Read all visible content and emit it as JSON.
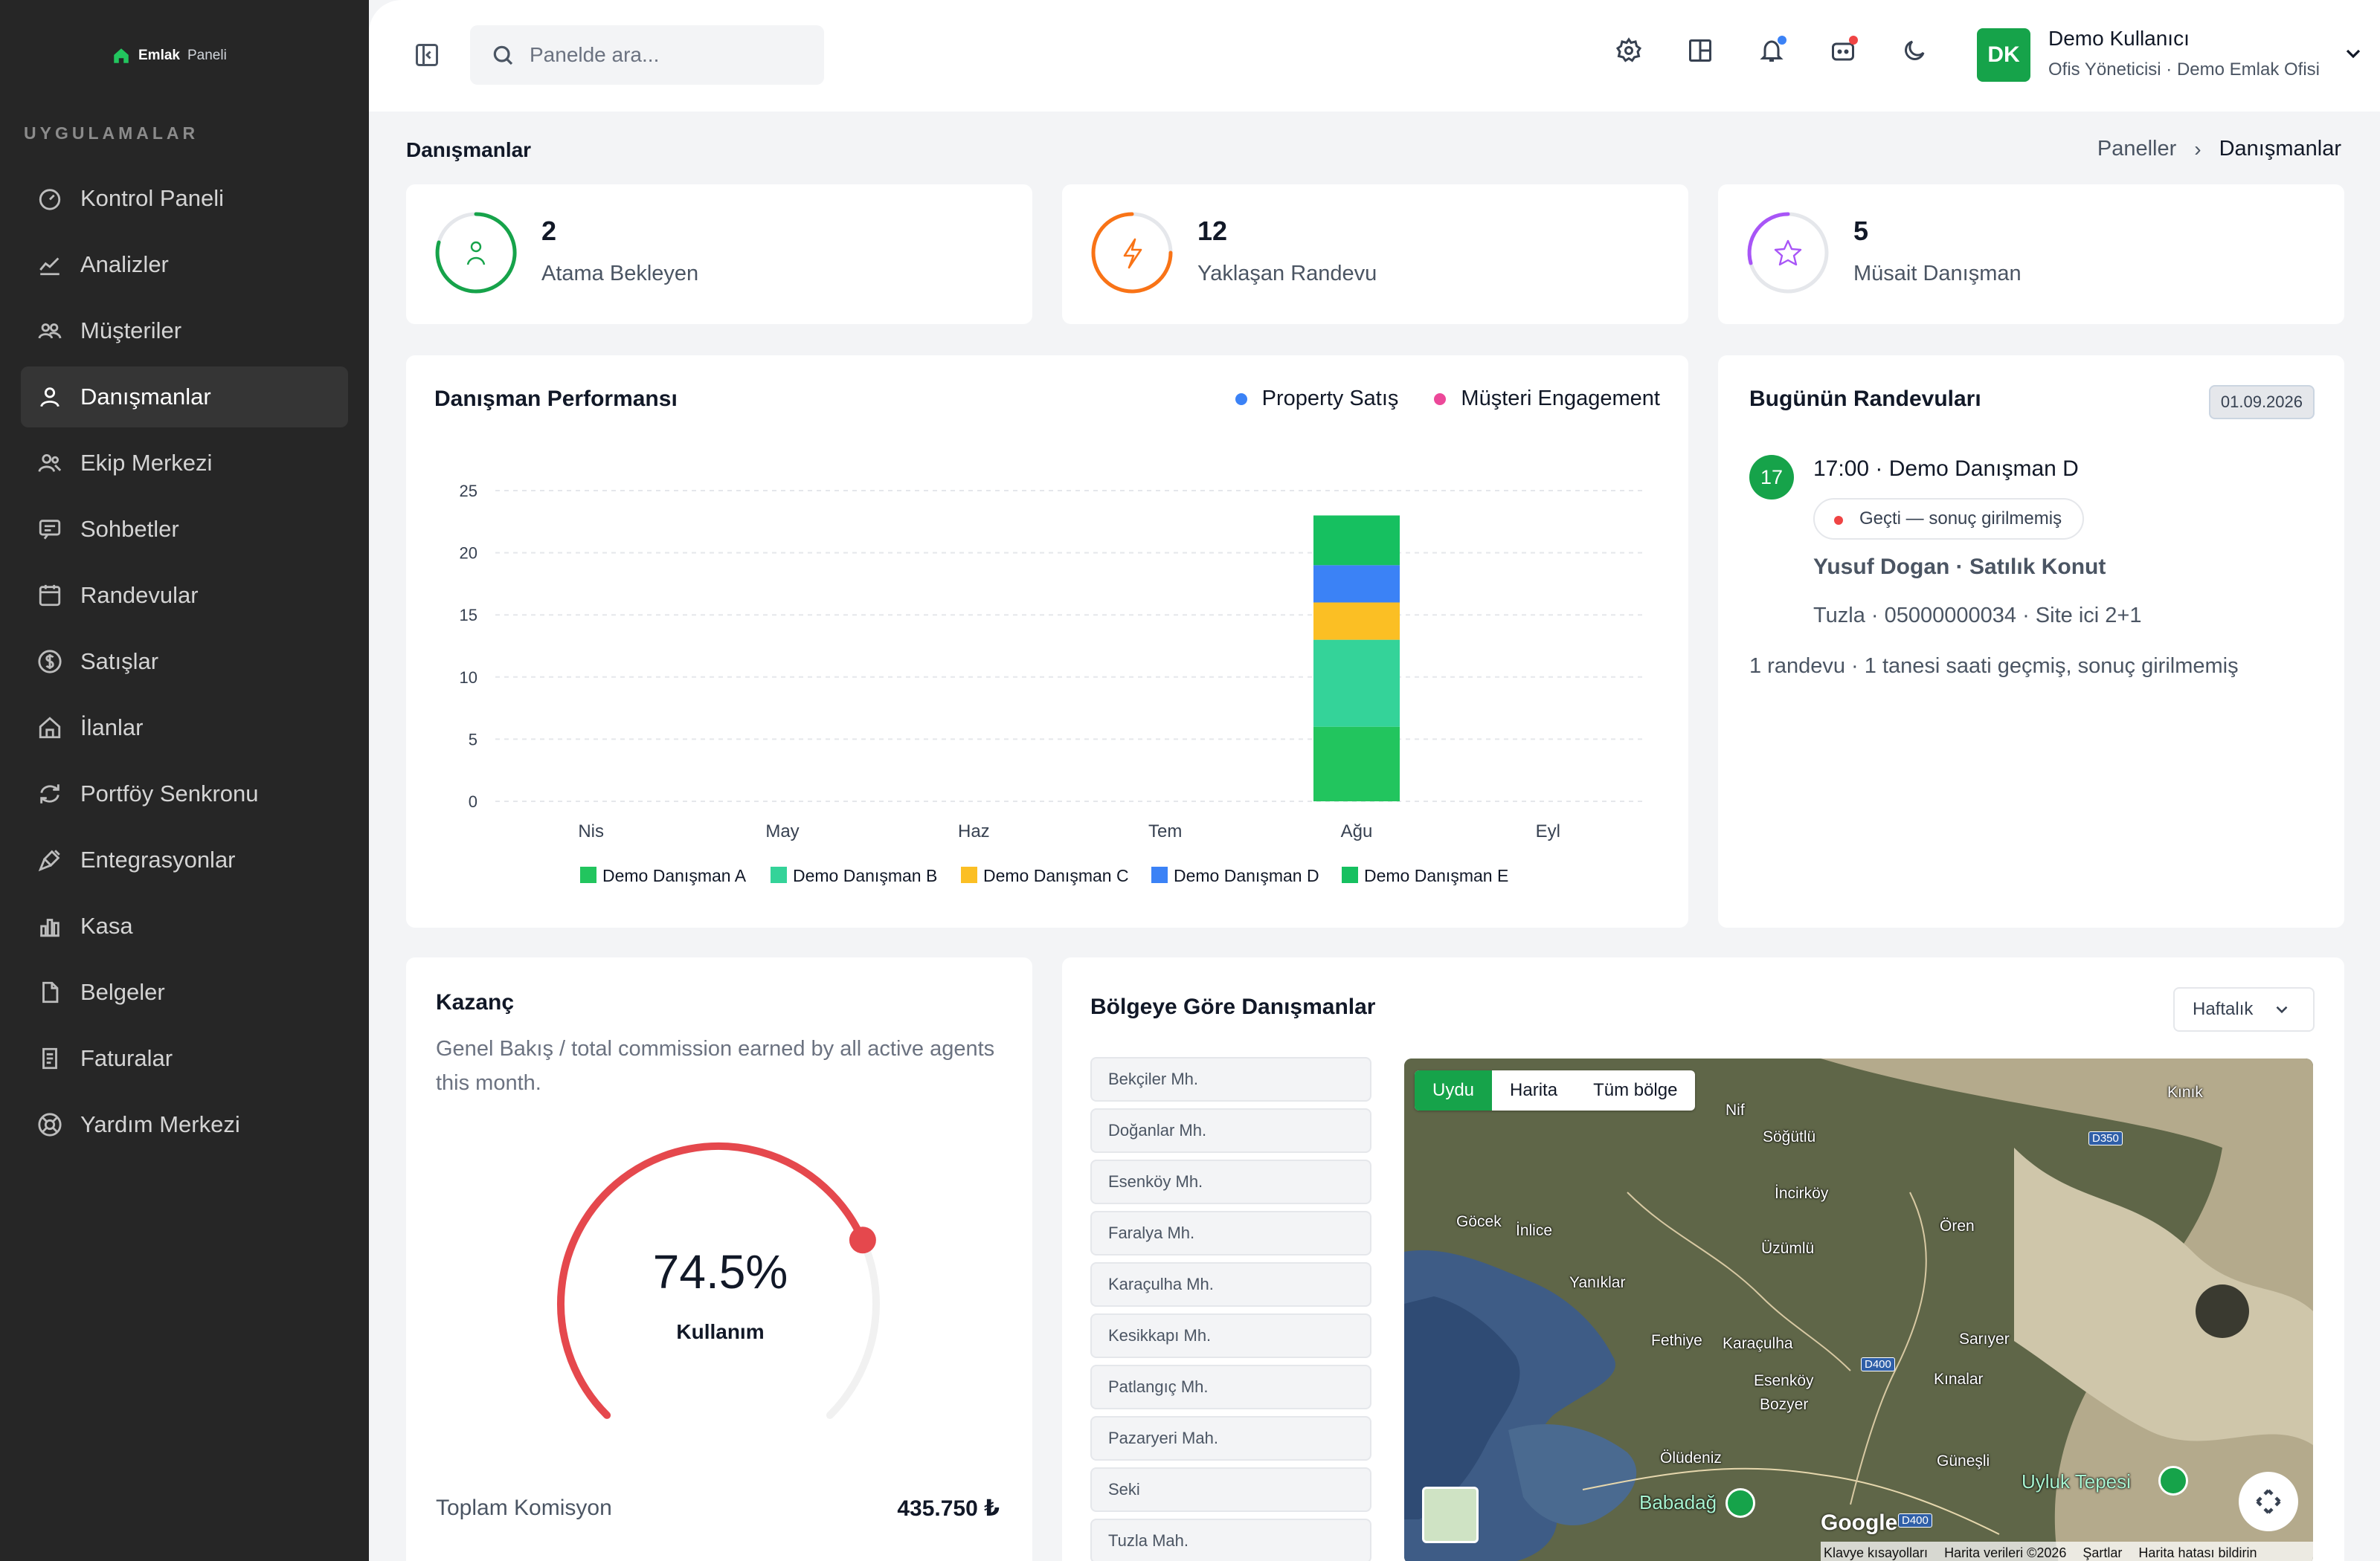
{
  "brand": {
    "name": "Emlak",
    "suffix": "Paneli",
    "icon": "house-icon"
  },
  "sidebar": {
    "section_label": "UYGULAMALAR",
    "items": [
      {
        "label": "Kontrol Paneli",
        "icon": "dashboard-icon",
        "active": false
      },
      {
        "label": "Analizler",
        "icon": "chart-line-icon",
        "active": false
      },
      {
        "label": "Müşteriler",
        "icon": "users-icon",
        "active": false
      },
      {
        "label": "Danışmanlar",
        "icon": "user-icon",
        "active": true
      },
      {
        "label": "Ekip Merkezi",
        "icon": "team-icon",
        "active": false
      },
      {
        "label": "Sohbetler",
        "icon": "chat-icon",
        "active": false
      },
      {
        "label": "Randevular",
        "icon": "calendar-icon",
        "active": false
      },
      {
        "label": "Satışlar",
        "icon": "dollar-icon",
        "active": false
      },
      {
        "label": "İlanlar",
        "icon": "home-icon",
        "active": false
      },
      {
        "label": "Portföy Senkronu",
        "icon": "sync-icon",
        "active": false
      },
      {
        "label": "Entegrasyonlar",
        "icon": "plug-icon",
        "active": false
      },
      {
        "label": "Kasa",
        "icon": "bar-chart-icon",
        "active": false
      },
      {
        "label": "Belgeler",
        "icon": "document-icon",
        "active": false
      },
      {
        "label": "Faturalar",
        "icon": "invoice-icon",
        "active": false
      },
      {
        "label": "Yardım Merkezi",
        "icon": "help-icon",
        "active": false
      }
    ]
  },
  "topbar": {
    "search_placeholder": "Panelde ara...",
    "icons": [
      "settings-icon",
      "layout-icon",
      "bell-icon",
      "chat-bot-icon",
      "moon-icon"
    ],
    "notification_colors": {
      "bell": "#3b82f6",
      "chat": "#ef4444"
    },
    "user": {
      "initials": "DK",
      "name": "Demo Kullanıcı",
      "role": "Ofis Yöneticisi · Demo Emlak Ofisi",
      "avatar_color": "#16a34a"
    }
  },
  "page": {
    "title": "Danışmanlar",
    "breadcrumb": [
      "Paneller",
      "Danışmanlar"
    ]
  },
  "stats": [
    {
      "value": "2",
      "label": "Atama Bekleyen",
      "color": "#16a34a",
      "icon": "user-icon"
    },
    {
      "value": "12",
      "label": "Yaklaşan Randevu",
      "color": "#f97316",
      "icon": "lightning-icon"
    },
    {
      "value": "5",
      "label": "Müsait Danışman",
      "color": "#a855f7",
      "icon": "star-icon"
    }
  ],
  "performance": {
    "title": "Danışman Performansı",
    "legend_top": [
      {
        "label": "Property Satış",
        "color": "#3b82f6"
      },
      {
        "label": "Müşteri Engagement",
        "color": "#ec4899"
      }
    ]
  },
  "chart_data": {
    "type": "bar",
    "stacked": true,
    "categories": [
      "Nis",
      "May",
      "Haz",
      "Tem",
      "Ağu",
      "Eyl"
    ],
    "ylim": [
      0,
      25
    ],
    "yticks": [
      0,
      5,
      10,
      15,
      20,
      25
    ],
    "grid": true,
    "legend_position": "bottom",
    "series": [
      {
        "name": "Demo Danışman A",
        "color": "#22c55e",
        "values": [
          0,
          0,
          0,
          0,
          6,
          0
        ]
      },
      {
        "name": "Demo Danışman B",
        "color": "#34d399",
        "values": [
          0,
          0,
          0,
          0,
          7,
          0
        ]
      },
      {
        "name": "Demo Danışman C",
        "color": "#fbbf24",
        "values": [
          0,
          0,
          0,
          0,
          3,
          0
        ]
      },
      {
        "name": "Demo Danışman D",
        "color": "#3b82f6",
        "values": [
          0,
          0,
          0,
          0,
          3,
          0
        ]
      },
      {
        "name": "Demo Danışman E",
        "color": "#16c060",
        "values": [
          0,
          0,
          0,
          0,
          4,
          0
        ]
      }
    ]
  },
  "appointments": {
    "title": "Bugünün Randevuları",
    "date": "01.09.2026",
    "item": {
      "number": "17",
      "time_agent": "17:00 · Demo Danışman D",
      "status": "Geçti — sonuç girilmemiş",
      "client": "Yusuf Dogan · Satılık Konut",
      "detail": "Tuzla · 05000000034 · Site ici 2+1"
    },
    "summary": "1 randevu · 1 tanesi saati geçmiş, sonuç girilmemiş"
  },
  "earnings": {
    "title": "Kazanç",
    "subtitle": "Genel Bakış / total commission earned by all active agents this month.",
    "gauge_value": "74.5%",
    "gauge_fraction": 0.745,
    "gauge_label": "Kullanım",
    "gauge_color": "#e5484d",
    "total_label": "Toplam Komisyon",
    "total_value": "435.750 ₺"
  },
  "regions": {
    "title": "Bölgeye Göre Danışmanlar",
    "period": "Haftalık",
    "items": [
      "Bekçiler Mh.",
      "Doğanlar Mh.",
      "Esenköy Mh.",
      "Faralya Mh.",
      "Karaçulha Mh.",
      "Kesikkapı Mh.",
      "Patlangıç Mh.",
      "Pazaryeri Mah.",
      "Seki",
      "Tuzla Mah."
    ],
    "map": {
      "tabs": [
        "Uydu",
        "Harita",
        "Tüm bölge"
      ],
      "places": [
        "Kınık",
        "Nif",
        "Söğütlü",
        "İncirköy",
        "Göcek",
        "İnlice",
        "Üzümlü",
        "Ören",
        "Yanıklar",
        "Fethiye",
        "Karaçulha",
        "Sarıyer",
        "Esenköy",
        "Kınalar",
        "Bozyer",
        "Ölüdeniz",
        "Güneşli",
        "Babadağ",
        "Uyluk Tepesi"
      ],
      "roads": [
        "D350",
        "D400",
        "D400"
      ],
      "brand": "Google",
      "attribution": [
        "Klavye kısayolları",
        "Harita verileri ©2026",
        "Şartlar",
        "Harita hatası bildirin"
      ]
    }
  }
}
